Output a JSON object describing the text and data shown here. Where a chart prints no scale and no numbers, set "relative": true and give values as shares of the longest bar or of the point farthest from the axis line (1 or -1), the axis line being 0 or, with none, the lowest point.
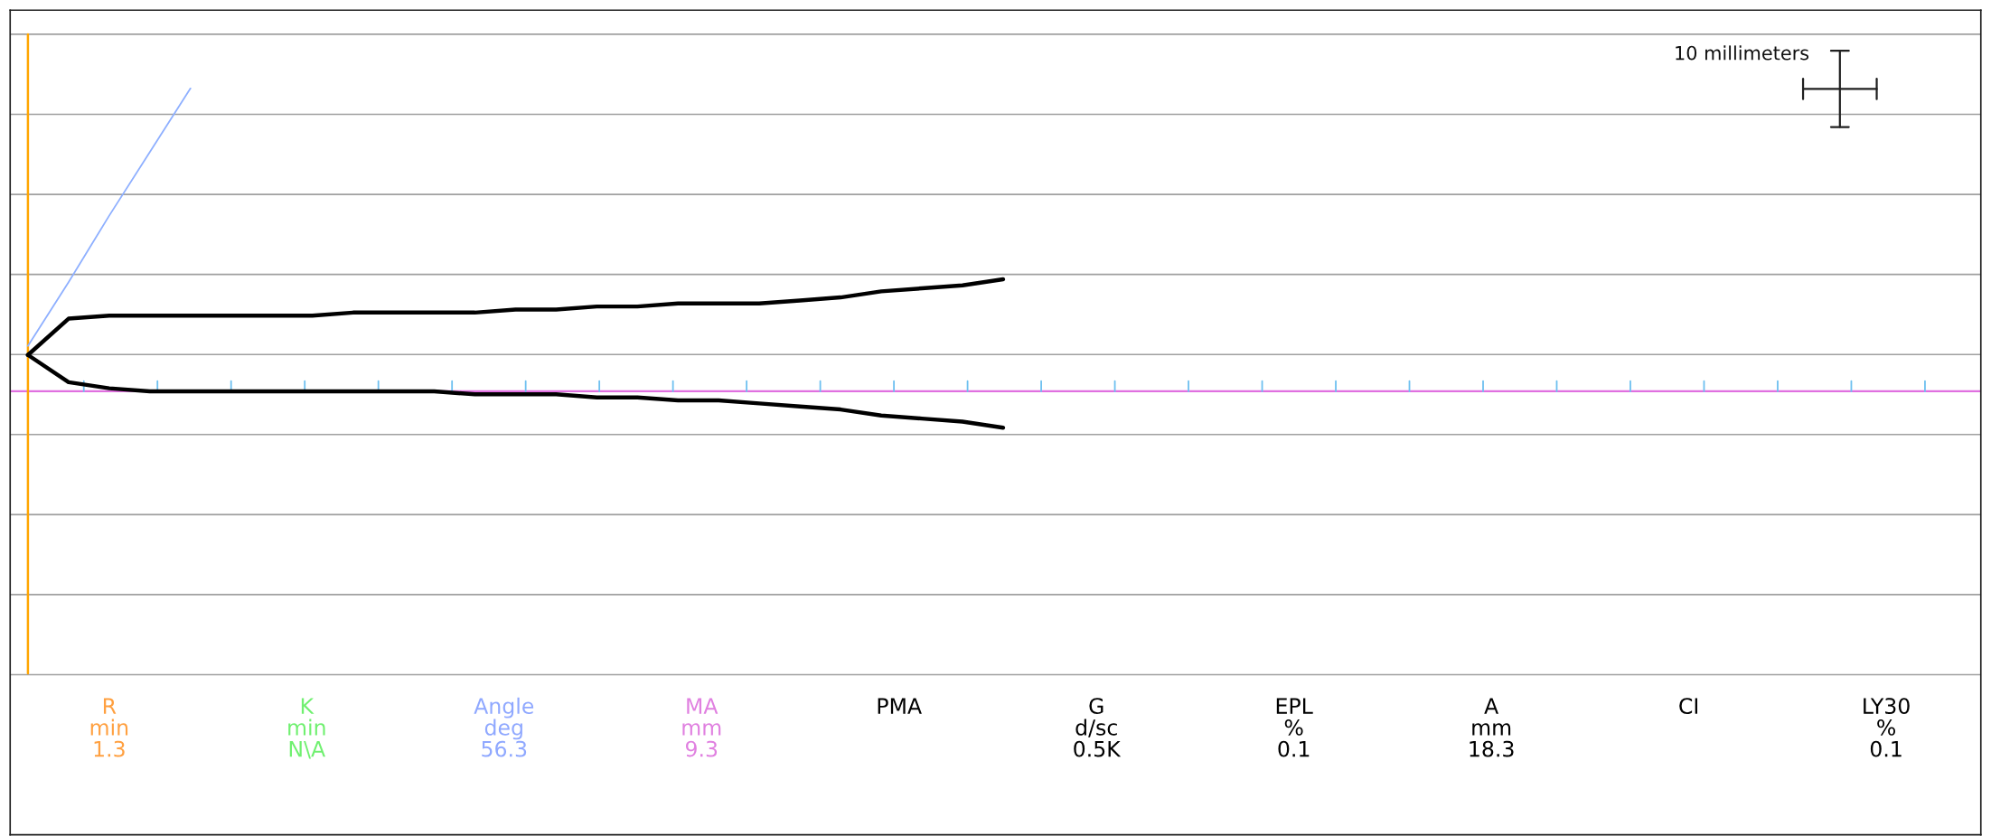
{
  "chart_data": {
    "type": "line",
    "relative": true,
    "grid": "y",
    "legend": false,
    "marker": "none",
    "line_style": "solid",
    "categories": [
      null,
      null,
      null,
      null,
      null,
      null,
      null,
      null,
      null,
      null,
      null,
      null,
      null,
      null,
      null,
      null,
      null,
      null,
      null,
      null,
      null,
      null,
      null,
      null,
      null,
      null,
      null,
      null,
      null,
      null,
      null,
      null,
      null,
      null,
      null,
      null,
      null,
      null,
      null,
      null,
      null,
      null,
      null,
      null,
      null,
      null,
      null,
      null
    ],
    "series": [
      {
        "color": "#000000",
        "values": [
          0.12,
          0.24,
          0.25,
          0.25,
          0.25,
          0.25,
          0.25,
          0.25,
          0.26,
          0.26,
          0.26,
          0.26,
          0.27,
          0.27,
          0.28,
          0.28,
          0.29,
          0.29,
          0.29,
          0.3,
          0.31,
          0.33,
          0.34,
          0.35,
          0.37,
          null,
          null,
          null,
          null,
          null,
          null,
          null,
          null,
          null,
          null,
          null,
          null,
          null,
          null,
          null,
          null,
          null,
          null,
          null,
          null,
          null,
          null,
          null
        ]
      },
      {
        "color": "#000000",
        "values": [
          0.12,
          0.03,
          0.01,
          0,
          0,
          0,
          0,
          0,
          0,
          0,
          0,
          -0.01,
          -0.01,
          -0.01,
          -0.02,
          -0.02,
          -0.03,
          -0.03,
          -0.04,
          -0.05,
          -0.06,
          -0.08,
          -0.09,
          -0.1,
          -0.12,
          null,
          null,
          null,
          null,
          null,
          null,
          null,
          null,
          null,
          null,
          null,
          null,
          null,
          null,
          null,
          null,
          null,
          null,
          null,
          null,
          null,
          null,
          null
        ]
      },
      {
        "color": "#8fb0ff",
        "values": [
          0.15,
          0.36,
          0.58,
          0.79,
          1,
          null,
          null,
          null,
          null,
          null,
          null,
          null,
          null,
          null,
          null,
          null,
          null,
          null,
          null,
          null,
          null,
          null,
          null,
          null,
          null,
          null,
          null,
          null,
          null,
          null,
          null,
          null,
          null,
          null,
          null,
          null,
          null,
          null,
          null,
          null,
          null,
          null,
          null,
          null,
          null,
          null,
          null,
          null
        ]
      }
    ],
    "ref_lines": [
      {
        "axis": "y",
        "value": 0,
        "color": "#e070e0"
      }
    ],
    "annotations": [
      "10 millimeters",
      "R\nmin\n1.3",
      "K\nmin\nN\\A",
      "Angle\ndeg\n56.3",
      "MA\nmm\n9.3",
      "PMA",
      "G\nd/sc\n0.5K",
      "EPL\n%\n0.1",
      "A\nmm\n18.3",
      "CI",
      "LY30\n%\n0.1"
    ]
  }
}
